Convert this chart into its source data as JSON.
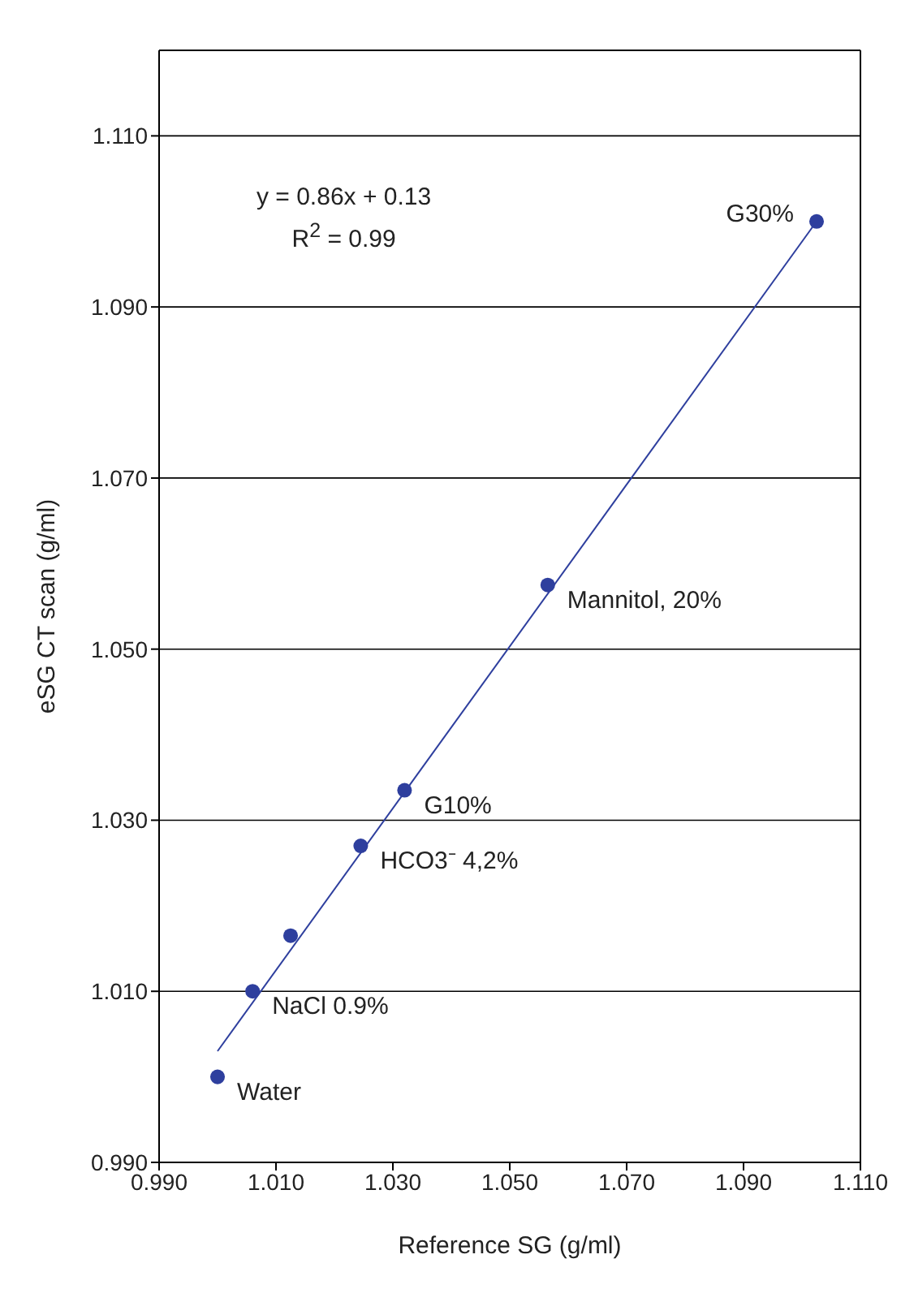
{
  "chart_data": {
    "type": "scatter",
    "xlabel": "Reference SG (g/ml)",
    "ylabel": "eSG CT scan (g/ml)",
    "xlim": [
      0.99,
      1.11
    ],
    "xticks": [
      {
        "value": 0.99,
        "label": "0.990"
      },
      {
        "value": 1.01,
        "label": "1.010"
      },
      {
        "value": 1.03,
        "label": "1.030"
      },
      {
        "value": 1.05,
        "label": "1.050"
      },
      {
        "value": 1.07,
        "label": "1.070"
      },
      {
        "value": 1.09,
        "label": "1.090"
      },
      {
        "value": 1.11,
        "label": "1.110"
      }
    ],
    "ylim": [
      0.99,
      1.12
    ],
    "yticks": [
      {
        "value": 0.99,
        "label": "0.990"
      },
      {
        "value": 1.01,
        "label": "1.010"
      },
      {
        "value": 1.03,
        "label": "1.030"
      },
      {
        "value": 1.05,
        "label": "1.050"
      },
      {
        "value": 1.07,
        "label": "1.070"
      },
      {
        "value": 1.09,
        "label": "1.090"
      },
      {
        "value": 1.11,
        "label": "1.110"
      }
    ],
    "grid": "y",
    "marker": "circle",
    "series": [
      {
        "color": "#2e3f9e",
        "x": [
          1.0,
          1.006,
          1.0125,
          1.0245,
          1.032,
          1.0565,
          1.1025
        ],
        "values": [
          1.0,
          1.01,
          1.0165,
          1.027,
          1.0335,
          1.0575,
          1.1
        ]
      },
      {
        "type": "line",
        "marker": "none",
        "color": "#2e3f9e",
        "x": [
          1.0,
          1.1025
        ],
        "values": [
          1.003,
          1.1
        ]
      }
    ],
    "annotations": [
      "y = 0.86x + 0.13",
      "R$^{2}$ = 0.99",
      {
        "text": "Water",
        "x": 1.0,
        "y": 1.0
      },
      {
        "text": "NaCl 0.9%",
        "x": 1.006,
        "y": 1.01
      },
      {
        "text": "HCO3⁻ 4,2%",
        "x": 1.0245,
        "y": 1.027
      },
      {
        "text": "G10%",
        "x": 1.032,
        "y": 1.0335
      },
      {
        "text": "Mannitol, 20%",
        "x": 1.0565,
        "y": 1.0575
      },
      {
        "text": "G30%",
        "x": 1.1025,
        "y": 1.1
      }
    ]
  }
}
